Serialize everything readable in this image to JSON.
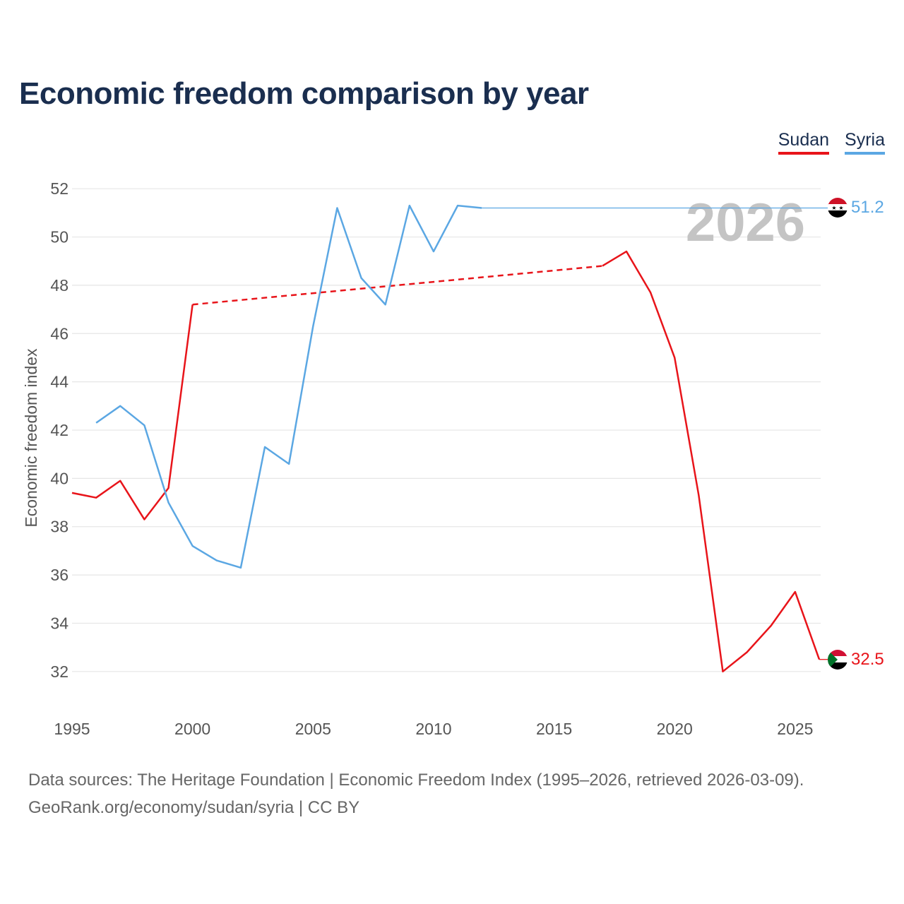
{
  "title": "Economic freedom comparison by year",
  "legend": [
    {
      "name": "Sudan",
      "color": "#e8141a"
    },
    {
      "name": "Syria",
      "color": "#5ba7e3"
    }
  ],
  "year_watermark": "2026",
  "footer": {
    "sources": "Data sources: The Heritage Foundation | Economic Freedom Index (1995–2026, retrieved 2026-03-09).",
    "credit": "GeoRank.org/economy/sudan/syria | CC BY"
  },
  "end_labels": {
    "sudan": "32.5",
    "syria": "51.2"
  },
  "chart_data": {
    "type": "line",
    "title": "Economic freedom comparison by year",
    "xlabel": "",
    "ylabel": "Economic freedom index",
    "xlim": [
      1995,
      2026
    ],
    "ylim": [
      31,
      53
    ],
    "xticks": [
      1995,
      2000,
      2005,
      2010,
      2015,
      2020,
      2025
    ],
    "yticks": [
      32,
      34,
      36,
      38,
      40,
      42,
      44,
      46,
      48,
      50,
      52
    ],
    "series": [
      {
        "name": "Sudan",
        "color": "#e8141a",
        "points": [
          [
            1995,
            39.4
          ],
          [
            1996,
            39.2
          ],
          [
            1997,
            39.9
          ],
          [
            1998,
            38.3
          ],
          [
            1999,
            39.6
          ],
          [
            2000,
            47.2
          ],
          [
            2017,
            48.8
          ],
          [
            2018,
            49.4
          ],
          [
            2019,
            47.7
          ],
          [
            2020,
            45.0
          ],
          [
            2021,
            39.3
          ],
          [
            2022,
            32.0
          ],
          [
            2023,
            32.8
          ],
          [
            2024,
            33.9
          ],
          [
            2025,
            35.3
          ],
          [
            2026,
            32.5
          ]
        ],
        "gaps": [
          [
            2000,
            2017
          ]
        ],
        "last_value": 32.5
      },
      {
        "name": "Syria",
        "color": "#5ba7e3",
        "points": [
          [
            1996,
            42.3
          ],
          [
            1997,
            43.0
          ],
          [
            1998,
            42.2
          ],
          [
            1999,
            39.0
          ],
          [
            2000,
            37.2
          ],
          [
            2001,
            36.6
          ],
          [
            2002,
            36.3
          ],
          [
            2003,
            41.3
          ],
          [
            2004,
            40.6
          ],
          [
            2005,
            46.3
          ],
          [
            2006,
            51.2
          ],
          [
            2007,
            48.3
          ],
          [
            2008,
            47.2
          ],
          [
            2009,
            51.3
          ],
          [
            2010,
            49.4
          ],
          [
            2011,
            51.3
          ],
          [
            2012,
            51.2
          ]
        ],
        "carried_forward_to": 2026,
        "last_value": 51.2
      }
    ]
  }
}
